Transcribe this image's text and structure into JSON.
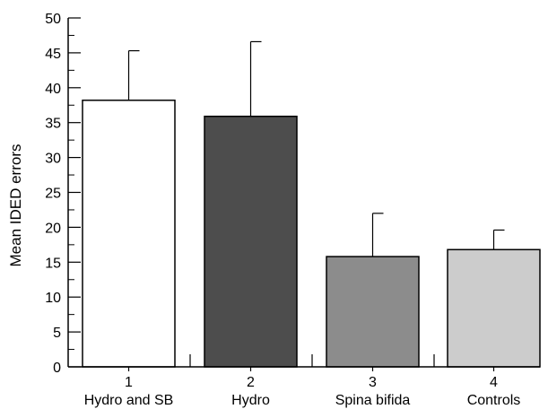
{
  "chart_data": {
    "type": "bar",
    "ylabel": "Mean IDED errors",
    "xlabel": "",
    "ylim": [
      0,
      50
    ],
    "yticks": [
      0,
      5,
      10,
      15,
      20,
      25,
      30,
      35,
      40,
      45,
      50
    ],
    "ytick_labels": [
      "0",
      "5",
      "10",
      "15",
      "20",
      "25",
      "30",
      "35",
      "40",
      "45",
      "50"
    ],
    "grid": false,
    "categories": [
      "Hydro and SB",
      "Hydro",
      "Spina bifida",
      "Controls"
    ],
    "category_numbers": [
      "1",
      "2",
      "3",
      "4"
    ],
    "values": [
      38.2,
      35.9,
      15.8,
      16.8
    ],
    "error_upper": [
      45.3,
      46.6,
      22.0,
      19.6
    ],
    "bar_colors": [
      "#ffffff",
      "#4d4d4d",
      "#8c8c8c",
      "#cccccc"
    ]
  }
}
